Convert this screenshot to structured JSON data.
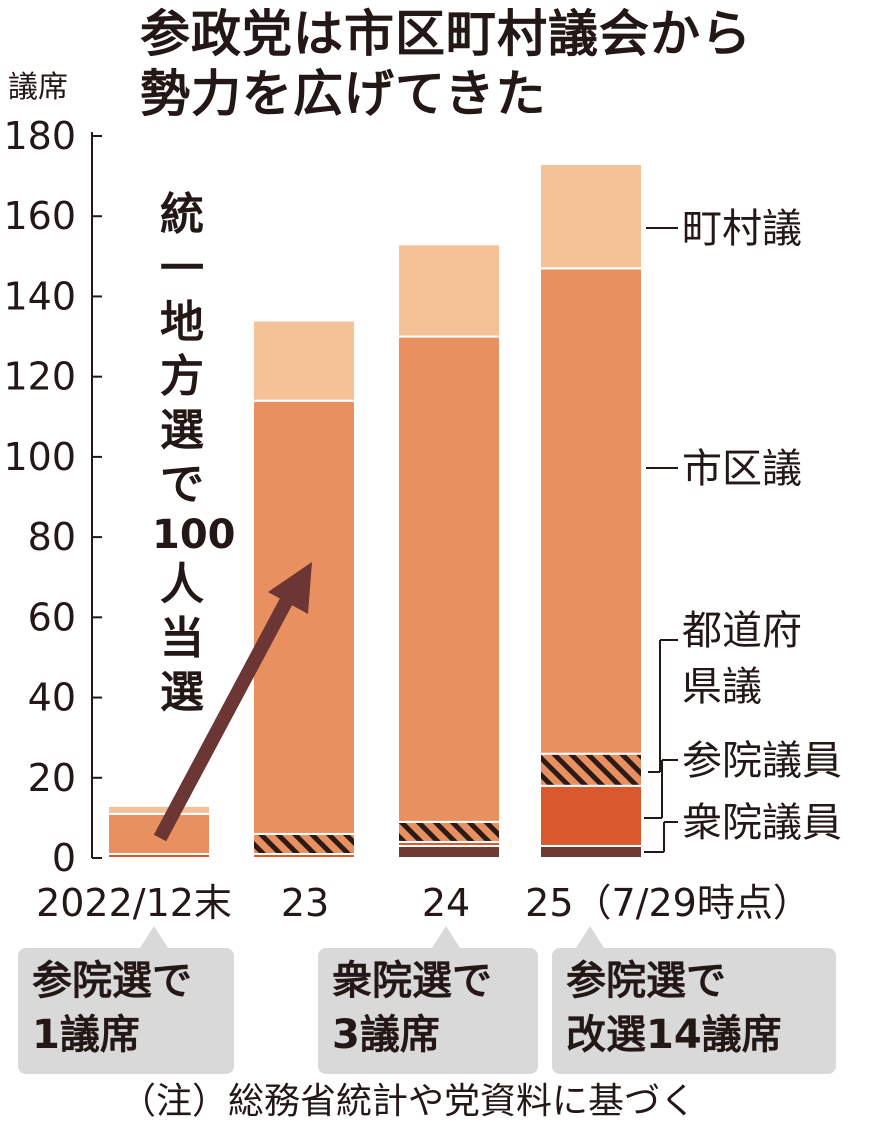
{
  "title": {
    "line1": "参政党は市区町村議会から",
    "line2": "勢力を広げてきた"
  },
  "chart_data": {
    "type": "bar",
    "stacked": true,
    "title": "参政党は市区町村議会から勢力を広げてきた",
    "ylabel": "議席",
    "ylim": [
      0,
      180
    ],
    "yticks": [
      "0",
      "20",
      "40",
      "60",
      "80",
      "100",
      "120",
      "140",
      "160",
      "180"
    ],
    "categories": [
      "2022/12末",
      "23",
      "24",
      "25（7/29時点）"
    ],
    "series": [
      {
        "name": "衆院議員",
        "values": [
          0,
          0,
          3,
          3
        ],
        "color": "#6e3a31"
      },
      {
        "name": "参院議員",
        "values": [
          1,
          1,
          1,
          15
        ],
        "color": "#d9582c"
      },
      {
        "name": "都道府県議",
        "values": [
          0,
          5,
          5,
          8
        ],
        "color": "#e8905f",
        "pattern": "hatch"
      },
      {
        "name": "市区議",
        "values": [
          10,
          108,
          121,
          121
        ],
        "color": "#e8905f"
      },
      {
        "name": "町村議",
        "values": [
          2,
          20,
          23,
          26
        ],
        "color": "#f5c297"
      }
    ],
    "legend_position": "right",
    "annotation": {
      "chars": [
        "統",
        "一",
        "地",
        "方",
        "選",
        "で",
        "100",
        "人",
        "当",
        "選"
      ],
      "arrow_color": "#6b3634"
    },
    "notes": [
      {
        "category": "2022/12末",
        "lines": [
          "参院選で",
          "1議席"
        ]
      },
      {
        "category": "24",
        "lines": [
          "衆院選で",
          "3議席"
        ]
      },
      {
        "category": "25（7/29時点）",
        "lines": [
          "参院選で",
          "改選14議席"
        ]
      }
    ]
  },
  "footnote": "（注）総務省統計や党資料に基づく"
}
